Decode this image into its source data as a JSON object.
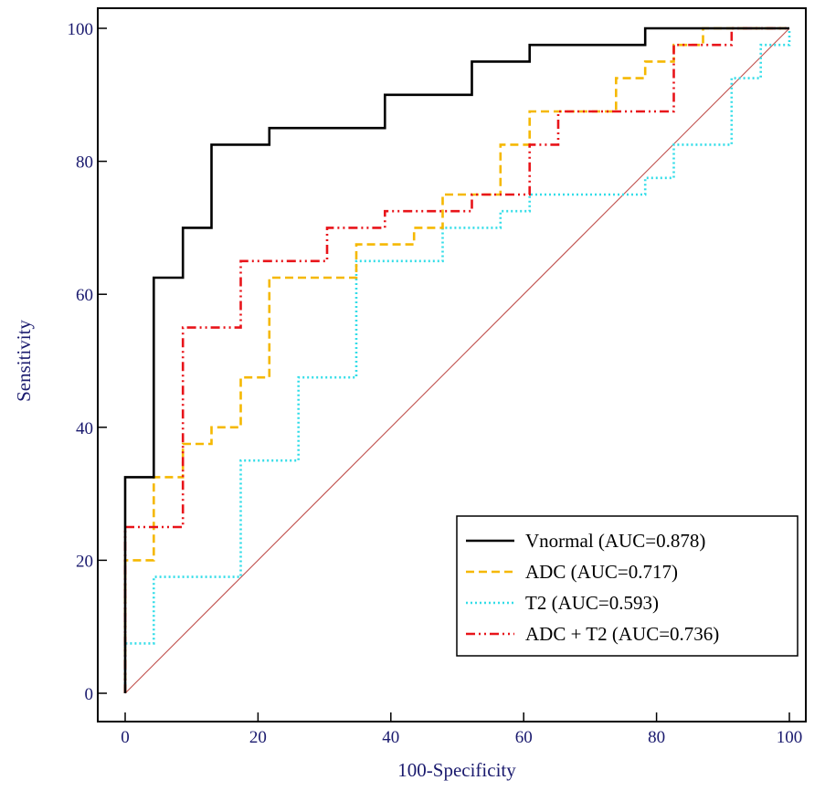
{
  "chart_data": {
    "type": "line",
    "title": "",
    "xlabel": "100-Specificity",
    "ylabel": "Sensitivity",
    "xlim": [
      0,
      100
    ],
    "ylim": [
      0,
      100
    ],
    "xticks": [
      "0",
      "20",
      "40",
      "60",
      "80",
      "100"
    ],
    "yticks": [
      "0",
      "20",
      "40",
      "60",
      "80",
      "100"
    ],
    "grid": false,
    "legend_position": "bottom-right",
    "reference_line": {
      "name": "chance",
      "x": [
        0,
        100
      ],
      "y": [
        0,
        100
      ],
      "color": "#c0504d"
    },
    "series": [
      {
        "name": "Vnormal (AUC=0.878)",
        "color": "#000000",
        "dash": "",
        "x": [
          0,
          0,
          4.3,
          4.3,
          8.7,
          8.7,
          13,
          13,
          21.7,
          21.7,
          39.1,
          39.1,
          52.2,
          52.2,
          60.9,
          60.9,
          78.3,
          78.3,
          100
        ],
        "y": [
          0,
          32.5,
          32.5,
          62.5,
          62.5,
          70,
          70,
          82.5,
          82.5,
          85,
          85,
          90,
          90,
          95,
          95,
          97.5,
          97.5,
          100,
          100
        ]
      },
      {
        "name": "ADC (AUC=0.717)",
        "color": "#f5b800",
        "dash": "9,5",
        "x": [
          0,
          0,
          0,
          4.3,
          4.3,
          8.7,
          8.7,
          13,
          13,
          17.4,
          17.4,
          21.7,
          21.7,
          34.8,
          34.8,
          43.5,
          43.5,
          47.8,
          47.8,
          56.5,
          56.5,
          60.9,
          60.9,
          73.9,
          73.9,
          78.3,
          78.3,
          82.6,
          82.6,
          87,
          87,
          100
        ],
        "y": [
          0,
          7.5,
          20,
          20,
          32.5,
          32.5,
          37.5,
          37.5,
          40,
          40,
          47.5,
          47.5,
          62.5,
          62.5,
          67.5,
          67.5,
          70,
          70,
          75,
          75,
          82.5,
          82.5,
          87.5,
          87.5,
          92.5,
          92.5,
          95,
          95,
          97.5,
          97.5,
          100,
          100
        ]
      },
      {
        "name": "T2 (AUC=0.593)",
        "color": "#33dde8",
        "dash": "2,3",
        "x": [
          0,
          0,
          4.3,
          4.3,
          17.4,
          17.4,
          26.1,
          26.1,
          34.8,
          34.8,
          47.8,
          47.8,
          56.5,
          56.5,
          60.9,
          60.9,
          78.3,
          78.3,
          82.6,
          82.6,
          91.3,
          91.3,
          95.7,
          95.7,
          100,
          100
        ],
        "y": [
          0,
          7.5,
          7.5,
          17.5,
          17.5,
          35,
          35,
          47.5,
          47.5,
          65,
          65,
          70,
          70,
          72.5,
          72.5,
          75,
          75,
          77.5,
          77.5,
          82.5,
          82.5,
          92.5,
          92.5,
          97.5,
          97.5,
          100
        ]
      },
      {
        "name": "ADC + T2 (AUC=0.736)",
        "color": "#e8141a",
        "dash": "10,4,2,4,2,4",
        "x": [
          0,
          0,
          8.7,
          8.7,
          17.4,
          17.4,
          30.4,
          30.4,
          39.1,
          39.1,
          47.8,
          47.8,
          52.2,
          52.2,
          60.9,
          60.9,
          65.2,
          65.2,
          82.6,
          82.6,
          91.3,
          91.3,
          100
        ],
        "y": [
          0,
          25,
          25,
          55,
          55,
          65,
          65,
          70,
          70,
          72.5,
          72.5,
          72.5,
          72.5,
          75,
          75,
          82.5,
          82.5,
          87.5,
          87.5,
          97.5,
          97.5,
          100,
          100
        ]
      }
    ]
  }
}
